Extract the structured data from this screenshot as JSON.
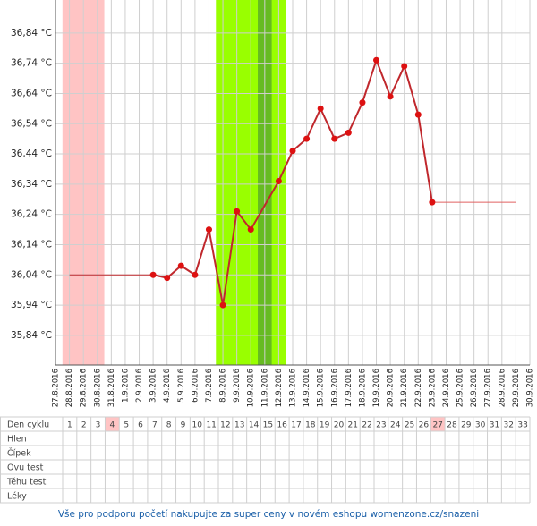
{
  "chart_data": {
    "type": "line",
    "categories": [
      "27.8.2016",
      "28.8.2016",
      "29.8.2016",
      "30.8.2016",
      "31.8.2016",
      "1.9.2016",
      "2.9.2016",
      "3.9.2016",
      "4.9.2016",
      "5.9.2016",
      "6.9.2016",
      "7.9.2016",
      "8.9.2016",
      "9.9.2016",
      "10.9.2016",
      "11.9.2016",
      "12.9.2016",
      "13.9.2016",
      "14.9.2016",
      "15.9.2016",
      "16.9.2016",
      "17.9.2016",
      "18.9.2016",
      "19.9.2016",
      "20.9.2016",
      "21.9.2016",
      "22.9.2016",
      "23.9.2016",
      "24.9.2016",
      "25.9.2016",
      "26.9.2016",
      "27.9.2016",
      "28.9.2016",
      "29.9.2016",
      "30.9.2016"
    ],
    "series": [
      {
        "color": "#c0282d",
        "x": [
          "3.9.2016",
          "4.9.2016",
          "5.9.2016",
          "6.9.2016",
          "7.9.2016",
          "8.9.2016",
          "9.9.2016",
          "10.9.2016",
          "12.9.2016",
          "13.9.2016",
          "14.9.2016",
          "15.9.2016",
          "16.9.2016",
          "17.9.2016",
          "18.9.2016",
          "19.9.2016",
          "20.9.2016",
          "21.9.2016",
          "22.9.2016",
          "23.9.2016"
        ],
        "values": [
          36.04,
          36.03,
          36.07,
          36.04,
          36.19,
          35.94,
          36.25,
          36.19,
          36.35,
          36.45,
          36.49,
          36.59,
          36.49,
          36.51,
          36.61,
          36.75,
          36.63,
          36.73,
          36.57,
          36.28
        ]
      },
      {
        "color": "#c0282d",
        "x": [
          "28.8.2016",
          "3.9.2016"
        ],
        "values": [
          36.04,
          36.04
        ]
      },
      {
        "color": "#e06060",
        "x": [
          "23.9.2016",
          "29.9.2016"
        ],
        "values": [
          36.28,
          36.28
        ]
      }
    ],
    "bands": [
      {
        "from": "28.8.2016",
        "to": "30.8.2016",
        "color": "#ffc4c4"
      },
      {
        "from": "8.9.2016",
        "to": "12.9.2016",
        "color": "#99ff00"
      },
      {
        "from": "11.9.2016",
        "to": "11.9.2016",
        "color": "#66bb22"
      }
    ],
    "ylim": [
      35.742,
      36.949
    ],
    "yticks": [
      {
        "value": 35.84,
        "label": "35,84 °C"
      },
      {
        "value": 35.94,
        "label": "35,94 °C"
      },
      {
        "value": 36.04,
        "label": "36,04 °C"
      },
      {
        "value": 36.14,
        "label": "36,14 °C"
      },
      {
        "value": 36.24,
        "label": "36,24 °C"
      },
      {
        "value": 36.34,
        "label": "36,34 °C"
      },
      {
        "value": 36.44,
        "label": "36,44 °C"
      },
      {
        "value": 36.54,
        "label": "36,54 °C"
      },
      {
        "value": 36.64,
        "label": "36,64 °C"
      },
      {
        "value": 36.74,
        "label": "36,74 °C"
      },
      {
        "value": 36.84,
        "label": "36,84 °C"
      }
    ],
    "grid": true
  },
  "cycle_table": {
    "header": "Den cyklu",
    "days": [
      1,
      2,
      3,
      4,
      5,
      6,
      7,
      8,
      9,
      10,
      11,
      12,
      13,
      14,
      15,
      16,
      17,
      18,
      19,
      20,
      21,
      22,
      23,
      24,
      25,
      26,
      27,
      28,
      29,
      30,
      31,
      32,
      33
    ],
    "highlight": [
      4,
      27
    ],
    "rows": [
      "Hlen",
      "Čípek",
      "Ovu test",
      "Těhu test",
      "Léky"
    ]
  },
  "footer": "Vše pro podporu početí nakupujte za super ceny v novém eshopu womenzone.cz/snazeni"
}
